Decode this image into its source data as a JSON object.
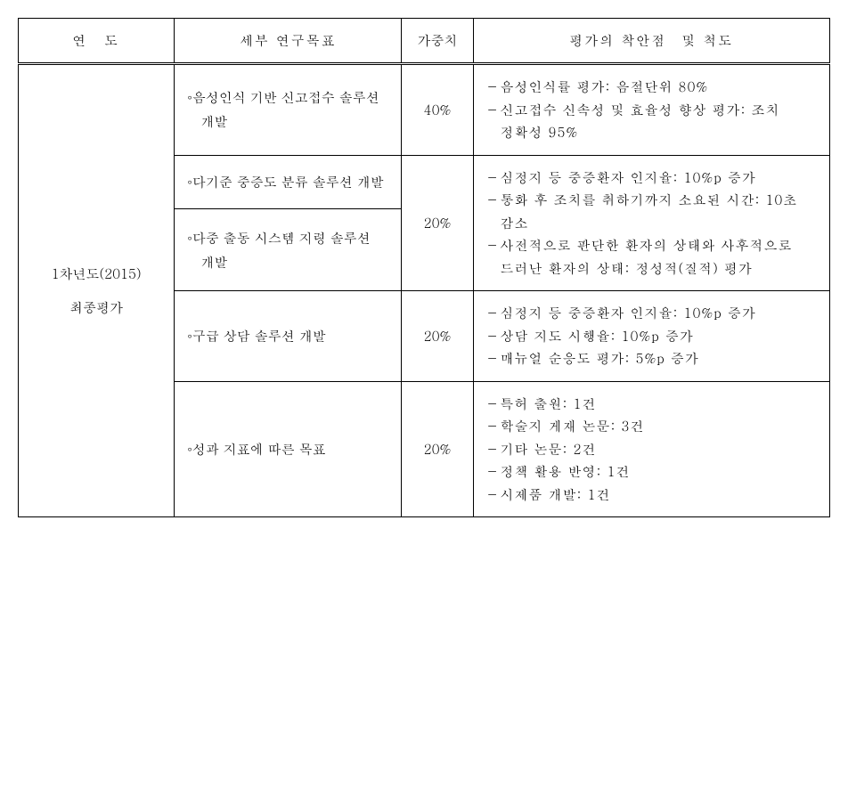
{
  "headers": {
    "year": "연　도",
    "goal": "세부 연구목표",
    "weight": "가중치",
    "eval": "평가의 착안점　및 척도"
  },
  "year_label_line1": "1차년도(2015)",
  "year_label_line2": "최종평가",
  "rows": [
    {
      "goal": "음성인식 기반 신고접수 솔루션 개발",
      "weight": "40%",
      "eval_items": [
        "－음성인식률 평가: 음절단위 80%",
        "－신고접수 신속성 및 효율성 향상 평가: 조치 정확성 95%"
      ]
    },
    {
      "goal": "다기준 중증도 분류 솔루션 개발",
      "weight": "20%",
      "eval_items": [
        "－심정지 등 중증환자 인지율: 10%p 증가",
        "－통화 후 조치를 취하기까지 소요된 시간: 10초 감소",
        "－사전적으로 판단한 환자의 상태와 사후적으로 드러난 환자의 상태: 정성적(질적) 평가"
      ]
    },
    {
      "goal": "다중 출동 시스템 지령 솔루션 개발"
    },
    {
      "goal": "구급 상담 솔루션 개발",
      "weight": "20%",
      "eval_items": [
        "－심정지 등 중증환자 인지율: 10%p 증가",
        "－상담 지도 시행율: 10%p 증가",
        "－매뉴얼 순응도 평가: 5%p 증가"
      ]
    },
    {
      "goal": "성과 지표에 따른 목표",
      "weight": "20%",
      "eval_items": [
        "－특허 출원: 1건",
        "－학술지 게재 논문: 3건",
        "－기타 논문: 2건",
        "－정책 활용 반영: 1건",
        "－시제품 개발: 1건"
      ]
    }
  ]
}
